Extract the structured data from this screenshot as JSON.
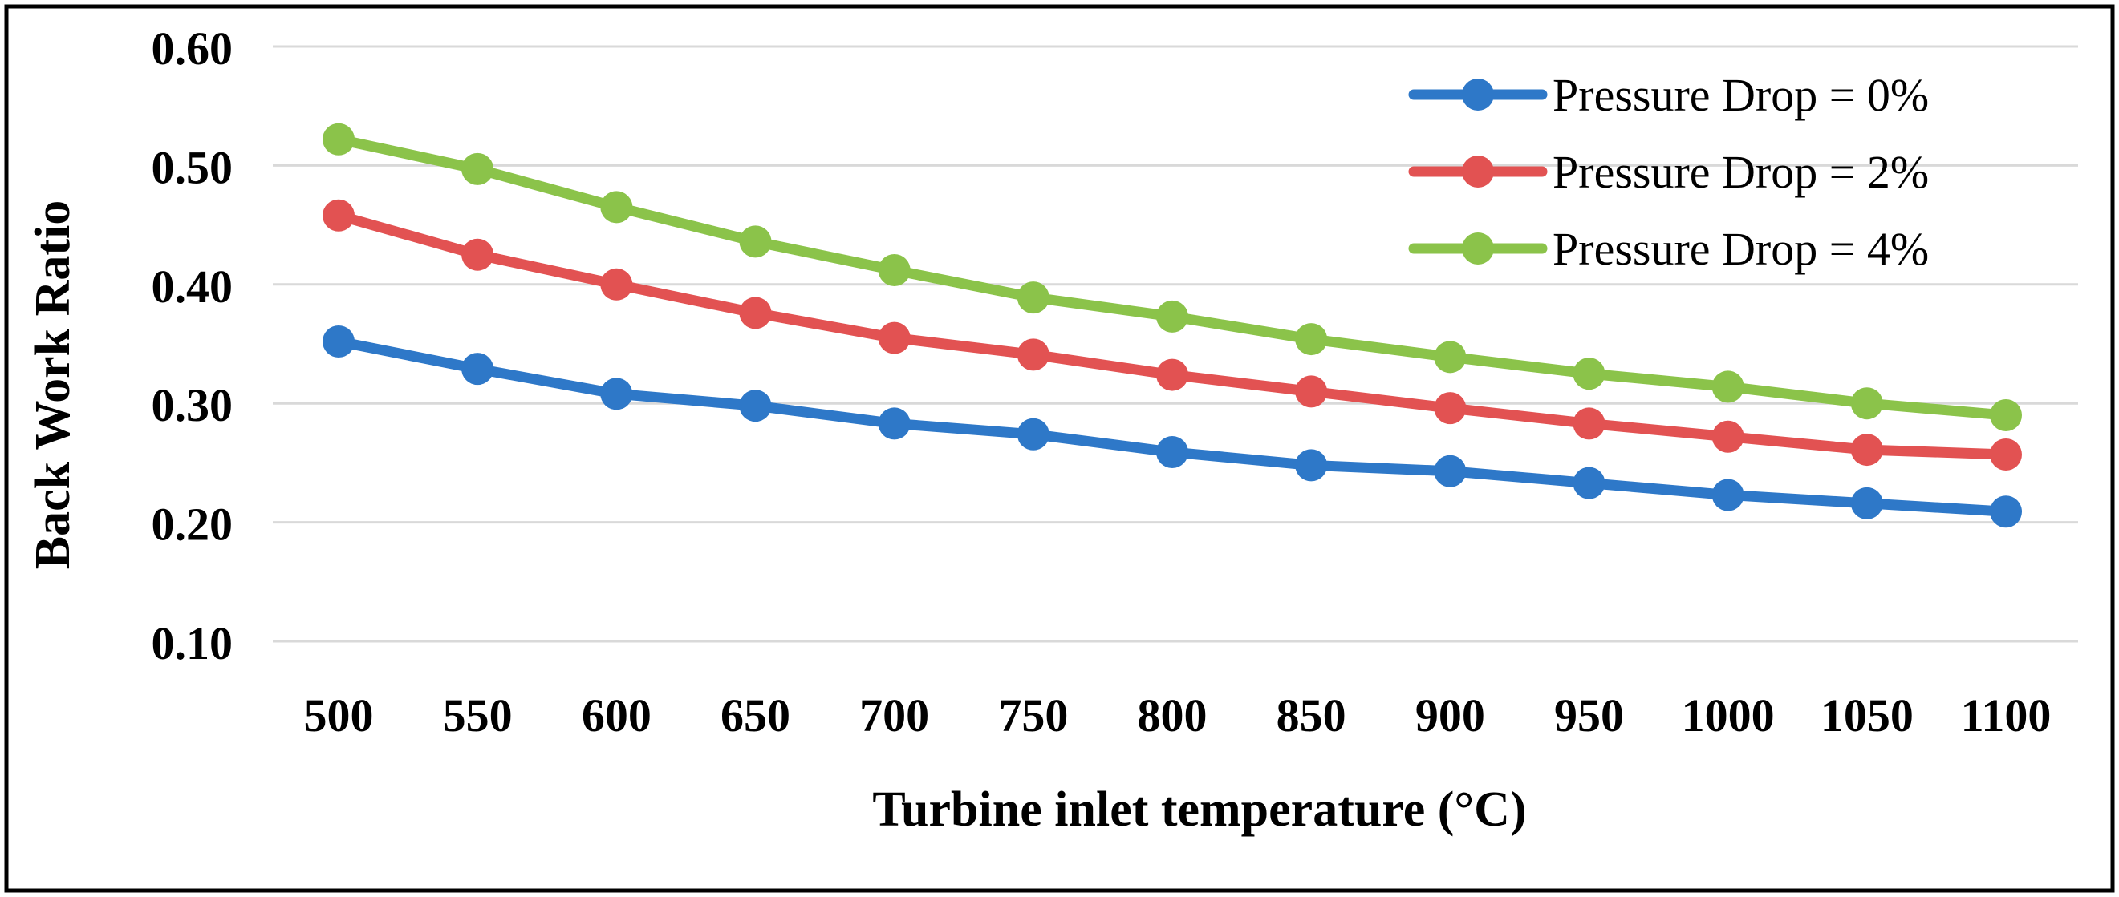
{
  "chart_data": {
    "type": "line",
    "title": "",
    "xlabel": "Turbine inlet temperature (°C)",
    "ylabel": "Back Work Ratio",
    "categories": [
      "500",
      "550",
      "600",
      "650",
      "700",
      "750",
      "800",
      "850",
      "900",
      "950",
      "1000",
      "1050",
      "1100"
    ],
    "ylim": [
      0.1,
      0.6
    ],
    "yticks": [
      "0.10",
      "0.20",
      "0.30",
      "0.40",
      "0.50",
      "0.60"
    ],
    "grid": true,
    "legend_position": "top-right",
    "series": [
      {
        "name": "Pressure Drop = 0%",
        "color": "#2E78C8",
        "values": [
          0.352,
          0.329,
          0.308,
          0.298,
          0.283,
          0.274,
          0.259,
          0.248,
          0.243,
          0.233,
          0.223,
          0.216,
          0.209
        ]
      },
      {
        "name": "Pressure Drop = 2%",
        "color": "#E25252",
        "values": [
          0.458,
          0.425,
          0.4,
          0.376,
          0.355,
          0.341,
          0.324,
          0.31,
          0.296,
          0.283,
          0.272,
          0.261,
          0.257
        ]
      },
      {
        "name": "Pressure Drop = 4%",
        "color": "#8BC34A",
        "values": [
          0.522,
          0.497,
          0.465,
          0.436,
          0.412,
          0.389,
          0.373,
          0.354,
          0.339,
          0.325,
          0.314,
          0.3,
          0.29
        ]
      }
    ]
  }
}
